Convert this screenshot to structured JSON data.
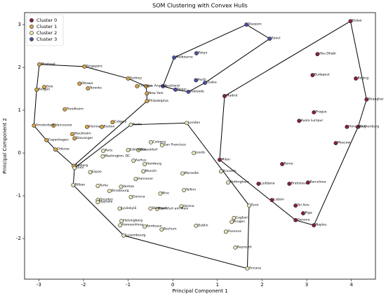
{
  "chart_data": {
    "type": "scatter",
    "title": "SOM Clustering with Convex Hulls",
    "xlabel": "Principal Component 1",
    "ylabel": "Principal Component 2",
    "xlim": [
      -3.32,
      4.54
    ],
    "ylim": [
      -2.95,
      3.28
    ],
    "xticks": [
      -3,
      -2,
      -1,
      0,
      1,
      2,
      3,
      4
    ],
    "yticks": [
      -2,
      -1,
      0,
      1,
      2,
      3
    ],
    "legend": "upper left",
    "convex_hulls": true,
    "series": [
      {
        "name": "Cluster 0",
        "color": "#8b1e3f",
        "labels": [
          "Madrid",
          "Milan",
          "Dubai",
          "Abu Dhabi",
          "Budapest",
          "Beijing",
          "Shanghai",
          "Prague",
          "Kuala Lumpur",
          "Hong Kong",
          "Gothenburg",
          "Moscow",
          "Rome",
          "Ljubljana",
          "Bratislava",
          "Barcelona",
          "Lisbon",
          "Tel Aviv",
          "Riga",
          "Genova",
          "Naples"
        ],
        "x": [
          1.16,
          1.05,
          3.98,
          3.24,
          3.13,
          4.1,
          4.34,
          3.16,
          2.83,
          3.9,
          4.15,
          3.65,
          2.45,
          1.92,
          2.61,
          3.03,
          2.22,
          2.75,
          2.92,
          2.75,
          3.16
        ],
        "y": [
          1.33,
          -0.16,
          3.08,
          2.31,
          1.82,
          1.74,
          1.25,
          0.95,
          0.75,
          0.61,
          0.61,
          0.23,
          -0.26,
          -0.72,
          -0.72,
          -0.69,
          -1.1,
          -1.23,
          -1.41,
          -1.57,
          -1.69
        ]
      },
      {
        "name": "Cluster 1",
        "color": "#d9a441",
        "labels": [
          "Chicago",
          "Los Angeles",
          "New York",
          "Philadelphia",
          "Sydney",
          "Montreal",
          "Singapore",
          "Ottawa",
          "Toronto",
          "Oslo",
          "Bergen",
          "Trondheim",
          "Calgary",
          "Vienna",
          "Boston",
          "Amsterdam",
          "Vancouver",
          "Copenhagen",
          "Stockholm",
          "Stavanger",
          "Odense",
          "Aalborg"
        ],
        "x": [
          -0.8,
          -0.6,
          -0.58,
          -0.58,
          -1.0,
          -2.99,
          -1.98,
          -2.09,
          -1.9,
          -2.88,
          -3.05,
          -2.42,
          -1.35,
          -1.92,
          -1.59,
          -3.11,
          -2.67,
          -2.83,
          -2.25,
          -2.2,
          -2.63,
          -2.22
        ],
        "y": [
          1.56,
          1.56,
          1.39,
          1.21,
          1.74,
          2.07,
          2.02,
          1.62,
          1.51,
          1.54,
          1.48,
          1.02,
          0.72,
          0.61,
          0.61,
          0.64,
          0.64,
          0.3,
          0.44,
          0.34,
          0.08,
          -0.3
        ]
      },
      {
        "name": "Cluster 2",
        "color": "#ece6b8",
        "labels": [
          "Berlin",
          "London",
          "Paris",
          "Washington, DC",
          "Edmonton",
          "Düsseldorf",
          "Cologne",
          "San Francisco",
          "Aarhus",
          "Hamburg",
          "Munich",
          "Hannover",
          "Leeds",
          "Marseille",
          "Tallinn",
          "Nice",
          "Verona",
          "Dublin",
          "Bochum",
          "Bordeaux",
          "Frankfurt am Main",
          "Stuttgart",
          "Jyväskylä",
          "Helsingborg",
          "Hameenlinna",
          "Vantaa",
          "Turku",
          "Strasbourg",
          "Geneva",
          "Dresden",
          "Uppsala",
          "Bilbao",
          "Oulu",
          "Espoo",
          "Luxembourg",
          "Ancona",
          "Bayreuth",
          "Florence",
          "Cagliari",
          "Bruges",
          "Turin",
          "Nottingham",
          "Brussels"
        ],
        "x": [
          -0.94,
          0.31,
          -1.56,
          -1.57,
          -1.0,
          -0.77,
          -0.49,
          -0.24,
          -0.88,
          -0.63,
          -0.66,
          -0.83,
          0.47,
          0.22,
          0.25,
          -0.28,
          0.19,
          0.52,
          -0.25,
          -0.63,
          -0.35,
          -0.5,
          -1.19,
          -1.15,
          -1.18,
          -1.16,
          -1.68,
          -1.42,
          -0.94,
          -1.68,
          -1.68,
          -2.23,
          -2.2,
          -1.85,
          -1.1,
          1.67,
          1.4,
          1.19,
          1.37,
          1.32,
          1.71,
          1.24,
          1.08
        ],
        "y": [
          0.66,
          0.7,
          0.05,
          -0.08,
          0.07,
          0.07,
          0.25,
          0.18,
          -0.18,
          -0.26,
          -0.43,
          -0.61,
          0.0,
          -0.48,
          -0.87,
          -0.95,
          -1.25,
          -1.7,
          -1.79,
          -1.72,
          -1.31,
          -1.3,
          -1.3,
          -1.59,
          -1.69,
          -0.79,
          -0.77,
          -0.89,
          -1.03,
          -1.1,
          -1.15,
          -0.75,
          -0.35,
          -0.45,
          -1.93,
          -2.7,
          -2.21,
          -1.84,
          -1.52,
          -1.61,
          -1.23,
          -0.69,
          -0.43
        ]
      },
      {
        "name": "Cluster 3",
        "color": "#4b4fa6",
        "labels": [
          "Daejeon",
          "Seoul",
          "Tokyo",
          "Melbourne",
          "Perth",
          "Osaka",
          "Taipei",
          "Adelaide",
          "Auckland"
        ],
        "x": [
          1.65,
          2.17,
          0.53,
          0.03,
          0.52,
          0.72,
          0.06,
          0.35,
          -0.22
        ],
        "y": [
          3.0,
          2.67,
          2.33,
          2.23,
          1.7,
          1.64,
          1.48,
          1.43,
          1.56
        ]
      }
    ]
  }
}
